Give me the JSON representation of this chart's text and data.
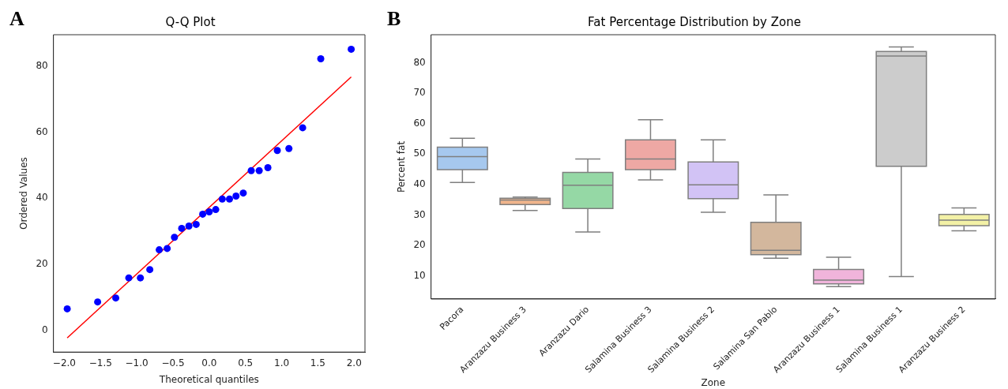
{
  "chart_data": [
    {
      "type": "scatter",
      "title": "Q-Q Plot",
      "xlabel": "Theoretical quantiles",
      "ylabel": "Ordered Values",
      "annotations": [
        "A"
      ],
      "grid": false,
      "xlim": [
        -2.15,
        2.15
      ],
      "ylim": [
        -6.6,
        89.6
      ],
      "xticks": [
        {
          "value": -2,
          "label": "−2.0"
        },
        {
          "value": -1.5,
          "label": "−1.5"
        },
        {
          "value": -1,
          "label": "−1.0"
        },
        {
          "value": -0.5,
          "label": "−0.5"
        },
        {
          "value": 0,
          "label": "0.0"
        },
        {
          "value": 0.5,
          "label": "0.5"
        },
        {
          "value": 1,
          "label": "1.0"
        },
        {
          "value": 1.5,
          "label": "1.5"
        },
        {
          "value": 2,
          "label": "2.0"
        }
      ],
      "yticks": [
        0,
        20,
        40,
        60,
        80
      ],
      "series": [
        {
          "type": "scatter",
          "marker": "circle",
          "color": "#0000ff",
          "x": [
            -1.96,
            -1.54,
            -1.29,
            -1.11,
            -0.95,
            -0.82,
            -0.69,
            -0.58,
            -0.48,
            -0.38,
            -0.28,
            -0.18,
            -0.09,
            0.0,
            0.09,
            0.18,
            0.28,
            0.37,
            0.47,
            0.58,
            0.69,
            0.81,
            0.94,
            1.1,
            1.29,
            1.54,
            1.96
          ],
          "values": [
            6.5,
            8.6,
            9.8,
            15.9,
            15.9,
            18.4,
            24.4,
            24.8,
            28.2,
            30.9,
            31.6,
            32.1,
            35.2,
            35.9,
            36.6,
            39.8,
            39.8,
            40.7,
            41.6,
            48.4,
            48.4,
            49.3,
            54.5,
            55.1,
            61.4,
            82.3,
            85.2
          ]
        },
        {
          "type": "line",
          "marker": "none",
          "color": "#ff0000",
          "x": [
            -1.96,
            1.96
          ],
          "values": [
            -2.3,
            76.8
          ]
        }
      ]
    },
    {
      "type": "box",
      "title": "Fat Percentage Distribution by Zone",
      "xlabel": "Zone",
      "ylabel": "Percent fat",
      "annotations": [
        "B"
      ],
      "grid": false,
      "categories": [
        "Pacora",
        "Aranzazu Business 3",
        "Aranzazu Dario",
        "Salamina Business 3",
        "Salamina Business 2",
        "Salamina San Pablo",
        "Aranzazu Business 1",
        "Salamina Business 1",
        "Aranzazu Business 2"
      ],
      "colors": [
        "#a6c8ee",
        "#efb48c",
        "#95d8a5",
        "#eea8a4",
        "#d2c3f5",
        "#d3b79d",
        "#f0b4db",
        "#cccccc",
        "#f3f1a6"
      ],
      "ylim": [
        2.4,
        89.2
      ],
      "yticks": [
        10,
        20,
        30,
        40,
        50,
        60,
        70,
        80
      ],
      "boxes": [
        {
          "low": 40.7,
          "q1": 44.9,
          "median": 49.2,
          "q3": 52.3,
          "high": 55.2
        },
        {
          "low": 31.5,
          "q1": 33.4,
          "median": 34.9,
          "q3": 35.5,
          "high": 35.9
        },
        {
          "low": 24.4,
          "q1": 32.1,
          "median": 39.8,
          "q3": 44.0,
          "high": 48.4
        },
        {
          "low": 41.5,
          "q1": 44.9,
          "median": 48.4,
          "q3": 54.7,
          "high": 61.3
        },
        {
          "low": 30.9,
          "q1": 35.4,
          "median": 39.9,
          "q3": 47.4,
          "high": 54.7
        },
        {
          "low": 15.8,
          "q1": 17.0,
          "median": 18.4,
          "q3": 27.6,
          "high": 36.6
        },
        {
          "low": 6.5,
          "q1": 7.4,
          "median": 8.6,
          "q3": 12.1,
          "high": 16.1
        },
        {
          "low": 9.8,
          "q1": 46.0,
          "median": 82.2,
          "q3": 83.7,
          "high": 85.2
        },
        {
          "low": 24.8,
          "q1": 26.5,
          "median": 28.3,
          "q3": 30.2,
          "high": 32.3
        }
      ]
    }
  ]
}
